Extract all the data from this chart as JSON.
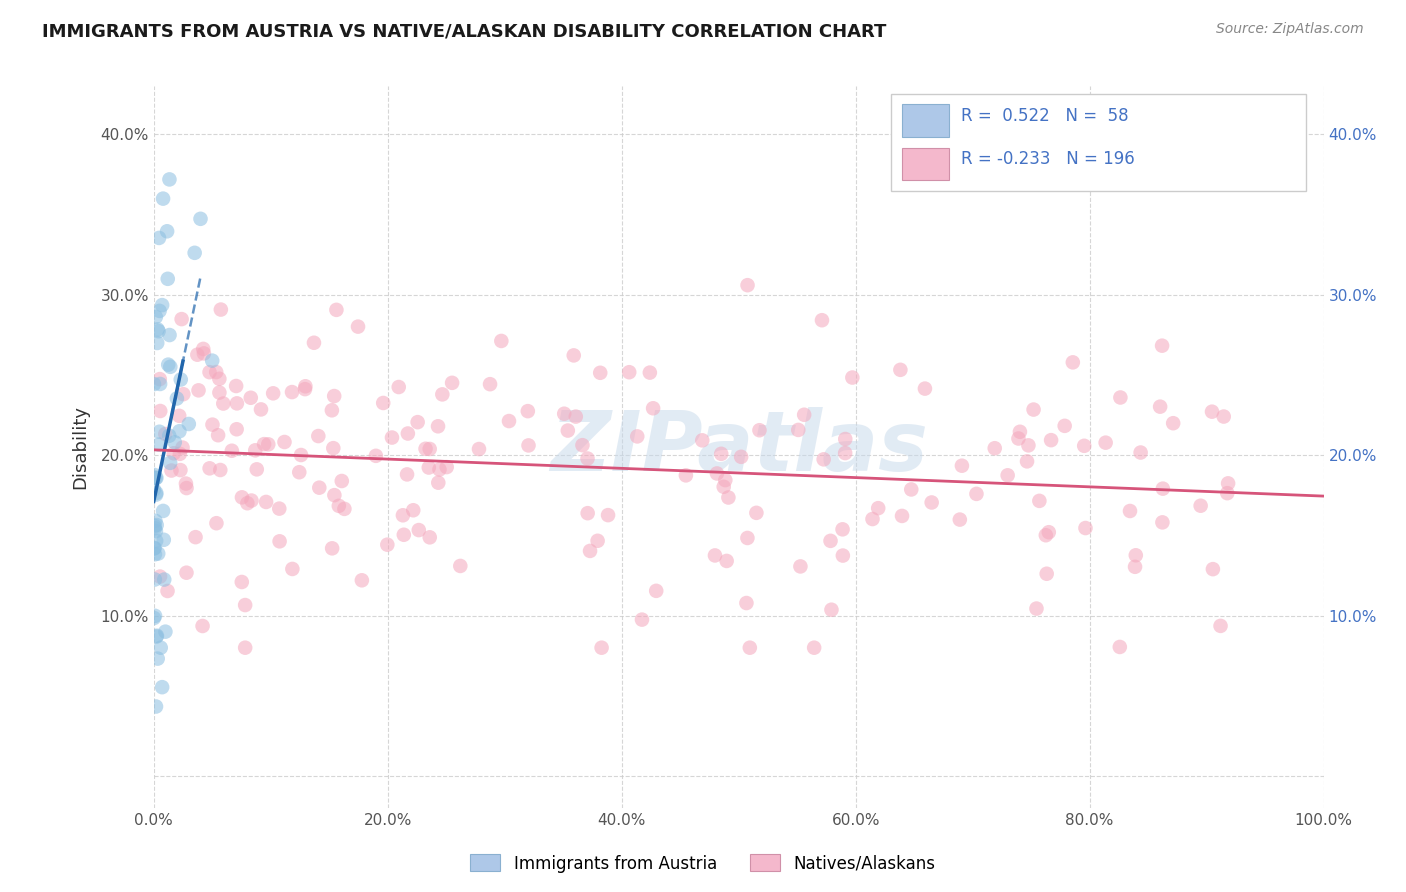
{
  "title": "IMMIGRANTS FROM AUSTRIA VS NATIVE/ALASKAN DISABILITY CORRELATION CHART",
  "source": "Source: ZipAtlas.com",
  "ylabel": "Disability",
  "xlim": [
    0.0,
    100.0
  ],
  "ylim": [
    -2.0,
    43.0
  ],
  "yticks": [
    0,
    10,
    20,
    30,
    40
  ],
  "ytick_labels": [
    "",
    "10.0%",
    "20.0%",
    "30.0%",
    "40.0%"
  ],
  "xticks": [
    0,
    20,
    40,
    60,
    80,
    100
  ],
  "xtick_labels": [
    "0.0%",
    "20.0%",
    "40.0%",
    "60.0%",
    "80.0%",
    "100.0%"
  ],
  "blue_R": 0.522,
  "blue_N": 58,
  "pink_R": -0.233,
  "pink_N": 196,
  "blue_dot_color": "#8bbee0",
  "pink_dot_color": "#f4a7bc",
  "blue_trend_color": "#2166ac",
  "pink_trend_color": "#d6547a",
  "legend_label_blue": "Immigrants from Austria",
  "legend_label_pink": "Natives/Alaskans",
  "blue_legend_color": "#aec8e8",
  "pink_legend_color": "#f4b8cc",
  "watermark_color": "#c5d8ea",
  "grid_color": "#cccccc",
  "right_tick_color": "#4472c4",
  "title_color": "#1a1a1a",
  "source_color": "#888888",
  "ylabel_color": "#333333"
}
